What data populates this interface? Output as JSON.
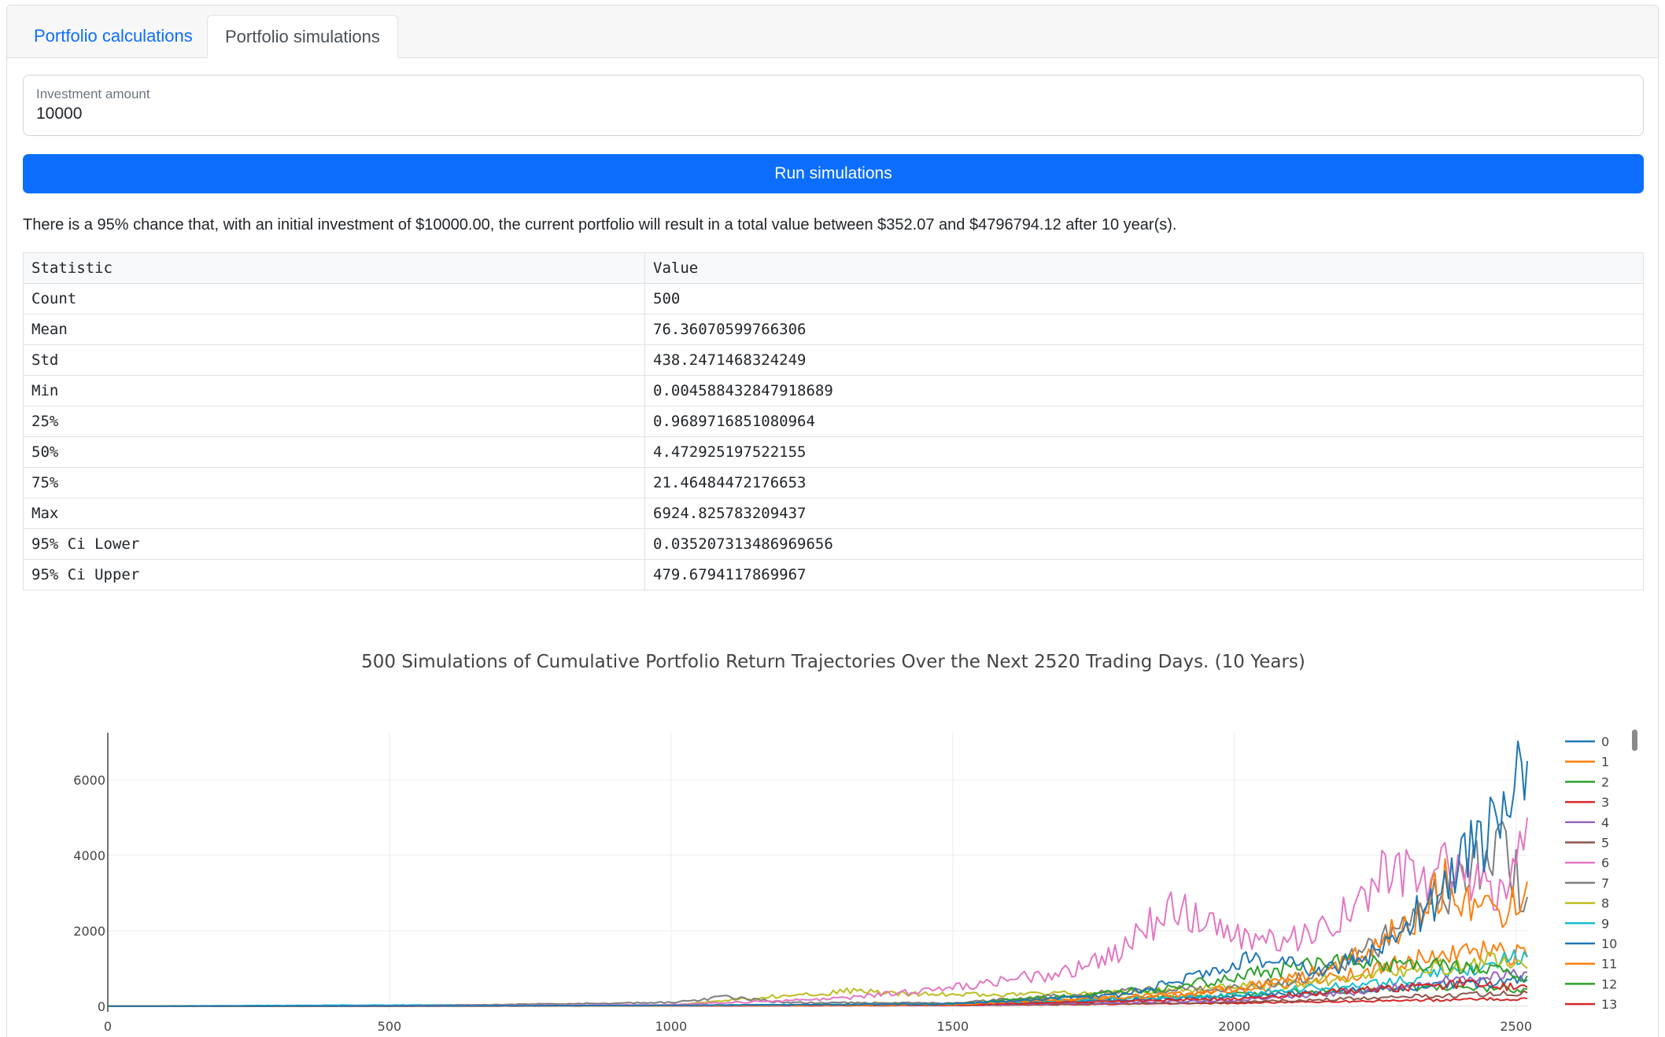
{
  "tabs": [
    {
      "label": "Portfolio calculations",
      "active": false
    },
    {
      "label": "Portfolio simulations",
      "active": true
    }
  ],
  "investment_input": {
    "label": "Investment amount",
    "value": "10000"
  },
  "run_button_label": "Run simulations",
  "summary_text": "There is a 95% chance that, with an initial investment of $10000.00, the current portfolio will result in a total value between $352.07 and $4796794.12 after 10 year(s).",
  "stats_table": {
    "headers": [
      "Statistic",
      "Value"
    ],
    "rows": [
      [
        "Count",
        "500"
      ],
      [
        "Mean",
        "76.36070599766306"
      ],
      [
        "Std",
        "438.2471468324249"
      ],
      [
        "Min",
        "0.004588432847918689"
      ],
      [
        "25%",
        "0.9689716851080964"
      ],
      [
        "50%",
        "4.472925197522155"
      ],
      [
        "75%",
        "21.46484472176653"
      ],
      [
        "Max",
        "6924.825783209437"
      ],
      [
        "95% Ci Lower",
        "0.035207313486969656"
      ],
      [
        "95% Ci Upper",
        "479.6794117869967"
      ]
    ]
  },
  "chart_data": {
    "type": "line",
    "title": "500 Simulations of Cumulative Portfolio Return Trajectories Over the Next 2520 Trading Days. (10 Years)",
    "xlabel": "",
    "ylabel": "",
    "xlim": [
      0,
      2520
    ],
    "ylim": [
      -150,
      7250
    ],
    "x_ticks": [
      "0",
      "500",
      "1000",
      "1500",
      "2000",
      "2500"
    ],
    "y_ticks": [
      "0",
      "2000",
      "4000",
      "6000"
    ],
    "x_tick_values": [
      0,
      500,
      1000,
      1500,
      2000,
      2500
    ],
    "y_tick_values": [
      0,
      2000,
      4000,
      6000
    ],
    "grid": true,
    "legend_position": "right",
    "series": [
      {
        "name": "0",
        "color": "#1f77b4",
        "values": [
          [
            0,
            1
          ],
          [
            500,
            8
          ],
          [
            1000,
            20
          ],
          [
            1500,
            60
          ],
          [
            1800,
            300
          ],
          [
            1950,
            900
          ],
          [
            2050,
            1300
          ],
          [
            2150,
            900
          ],
          [
            2250,
            1400
          ],
          [
            2330,
            2500
          ],
          [
            2380,
            3200
          ],
          [
            2420,
            4100
          ],
          [
            2460,
            4800
          ],
          [
            2490,
            6200
          ],
          [
            2510,
            6900
          ],
          [
            2520,
            6500
          ]
        ]
      },
      {
        "name": "1",
        "color": "#ff7f0e",
        "values": [
          [
            0,
            1
          ],
          [
            500,
            5
          ],
          [
            1000,
            12
          ],
          [
            1500,
            40
          ],
          [
            1900,
            300
          ],
          [
            2050,
            600
          ],
          [
            2150,
            900
          ],
          [
            2250,
            1500
          ],
          [
            2320,
            2400
          ],
          [
            2380,
            3300
          ],
          [
            2420,
            2800
          ],
          [
            2470,
            2300
          ],
          [
            2500,
            2900
          ],
          [
            2520,
            3300
          ]
        ]
      },
      {
        "name": "2",
        "color": "#2ca02c",
        "values": [
          [
            0,
            1
          ],
          [
            500,
            6
          ],
          [
            1000,
            15
          ],
          [
            1500,
            60
          ],
          [
            1900,
            500
          ],
          [
            2000,
            800
          ],
          [
            2100,
            1000
          ],
          [
            2200,
            1200
          ],
          [
            2300,
            1100
          ],
          [
            2400,
            1000
          ],
          [
            2520,
            800
          ]
        ]
      },
      {
        "name": "3",
        "color": "#d62728",
        "values": [
          [
            0,
            1
          ],
          [
            500,
            4
          ],
          [
            1000,
            10
          ],
          [
            1500,
            30
          ],
          [
            2000,
            200
          ],
          [
            2200,
            400
          ],
          [
            2400,
            600
          ],
          [
            2520,
            500
          ]
        ]
      },
      {
        "name": "4",
        "color": "#9467bd",
        "values": [
          [
            0,
            1
          ],
          [
            500,
            3
          ],
          [
            1000,
            8
          ],
          [
            1500,
            25
          ],
          [
            2000,
            150
          ],
          [
            2200,
            350
          ],
          [
            2400,
            700
          ],
          [
            2520,
            900
          ]
        ]
      },
      {
        "name": "5",
        "color": "#8c564b",
        "values": [
          [
            0,
            1
          ],
          [
            500,
            3
          ],
          [
            1000,
            9
          ],
          [
            1500,
            20
          ],
          [
            2000,
            100
          ],
          [
            2200,
            200
          ],
          [
            2400,
            300
          ],
          [
            2520,
            350
          ]
        ]
      },
      {
        "name": "6",
        "color": "#e377c2",
        "values": [
          [
            0,
            1
          ],
          [
            500,
            10
          ],
          [
            1000,
            40
          ],
          [
            1300,
            200
          ],
          [
            1500,
            500
          ],
          [
            1700,
            900
          ],
          [
            1800,
            1500
          ],
          [
            1850,
            2200
          ],
          [
            1900,
            2600
          ],
          [
            1950,
            2100
          ],
          [
            2000,
            1900
          ],
          [
            2050,
            1800
          ],
          [
            2100,
            1750
          ],
          [
            2150,
            1900
          ],
          [
            2200,
            2500
          ],
          [
            2250,
            3300
          ],
          [
            2280,
            4000
          ],
          [
            2330,
            3200
          ],
          [
            2380,
            3900
          ],
          [
            2420,
            3400
          ],
          [
            2460,
            2800
          ],
          [
            2500,
            3500
          ],
          [
            2520,
            5000
          ]
        ]
      },
      {
        "name": "7",
        "color": "#7f7f7f",
        "values": [
          [
            0,
            1
          ],
          [
            500,
            8
          ],
          [
            1000,
            100
          ],
          [
            1100,
            250
          ],
          [
            1200,
            100
          ],
          [
            1500,
            80
          ],
          [
            1800,
            400
          ],
          [
            2000,
            500
          ],
          [
            2150,
            800
          ],
          [
            2250,
            1600
          ],
          [
            2330,
            2600
          ],
          [
            2380,
            3100
          ],
          [
            2430,
            3600
          ],
          [
            2470,
            4200
          ],
          [
            2500,
            3400
          ],
          [
            2520,
            2900
          ]
        ]
      },
      {
        "name": "8",
        "color": "#bcbd22",
        "values": [
          [
            0,
            1
          ],
          [
            500,
            5
          ],
          [
            1000,
            20
          ],
          [
            1300,
            400
          ],
          [
            1500,
            300
          ],
          [
            1800,
            350
          ],
          [
            2100,
            600
          ],
          [
            2300,
            900
          ],
          [
            2450,
            1200
          ],
          [
            2520,
            1000
          ]
        ]
      },
      {
        "name": "9",
        "color": "#17becf",
        "values": [
          [
            0,
            1
          ],
          [
            500,
            30
          ],
          [
            1000,
            25
          ],
          [
            1500,
            60
          ],
          [
            2000,
            300
          ],
          [
            2300,
            700
          ],
          [
            2450,
            1100
          ],
          [
            2520,
            1300
          ]
        ]
      },
      {
        "name": "10",
        "color": "#1f77b4",
        "values": [
          [
            0,
            1
          ],
          [
            500,
            5
          ],
          [
            1000,
            15
          ],
          [
            1500,
            50
          ],
          [
            2000,
            250
          ],
          [
            2300,
            500
          ],
          [
            2520,
            700
          ]
        ]
      },
      {
        "name": "11",
        "color": "#ff7f0e",
        "values": [
          [
            0,
            1
          ],
          [
            500,
            6
          ],
          [
            1000,
            20
          ],
          [
            1500,
            60
          ],
          [
            2000,
            400
          ],
          [
            2200,
            800
          ],
          [
            2400,
            1500
          ],
          [
            2520,
            1300
          ]
        ]
      },
      {
        "name": "12",
        "color": "#2ca02c",
        "values": [
          [
            0,
            1
          ],
          [
            500,
            5
          ],
          [
            1000,
            18
          ],
          [
            1500,
            50
          ],
          [
            2000,
            300
          ],
          [
            2300,
            500
          ],
          [
            2520,
            450
          ]
        ]
      },
      {
        "name": "13",
        "color": "#d62728",
        "values": [
          [
            0,
            1
          ],
          [
            500,
            3
          ],
          [
            1000,
            8
          ],
          [
            1500,
            20
          ],
          [
            2000,
            80
          ],
          [
            2300,
            150
          ],
          [
            2520,
            200
          ]
        ]
      }
    ]
  }
}
